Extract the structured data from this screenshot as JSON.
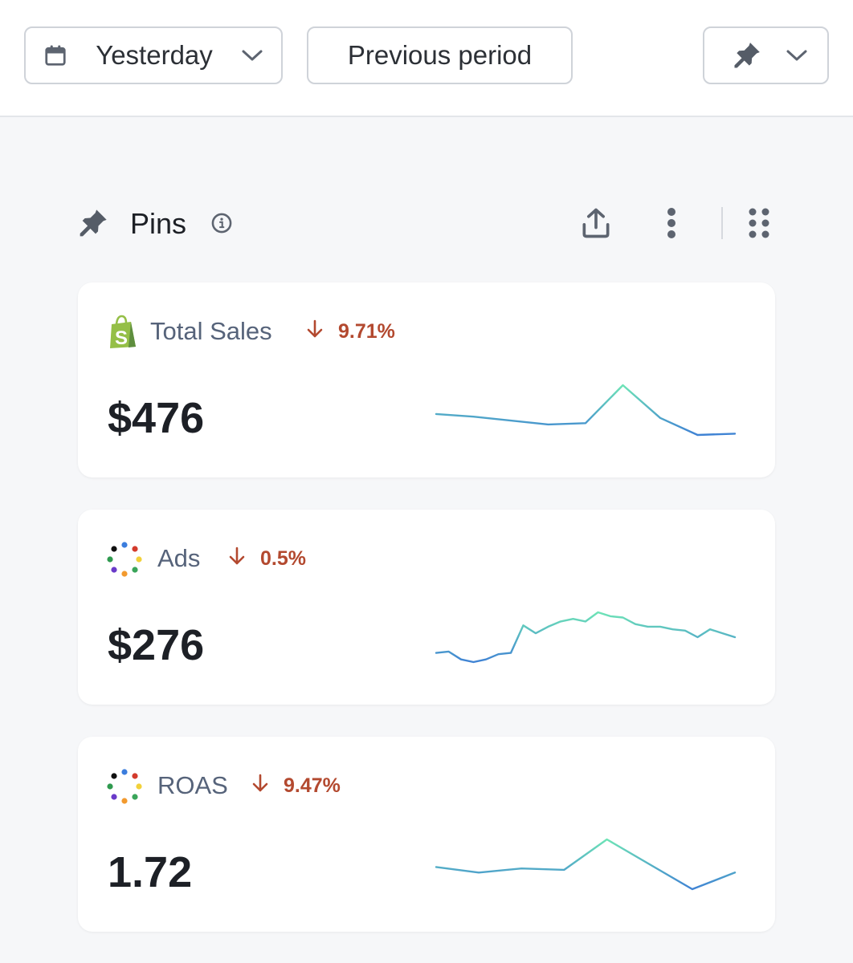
{
  "toolbar": {
    "date_label": "Yesterday",
    "compare_label": "Previous period"
  },
  "pins": {
    "title": "Pins"
  },
  "cards": [
    {
      "metric": "Total Sales",
      "delta": "9.71%",
      "value": "$476",
      "source": "shopify-logo",
      "trend": [
        22,
        20,
        17,
        14,
        15,
        44,
        19,
        6,
        7
      ]
    },
    {
      "metric": "Ads",
      "delta": "0.5%",
      "value": "$276",
      "source": "ads-logo",
      "trend": [
        22,
        23,
        17,
        15,
        17,
        21,
        22,
        43,
        37,
        42,
        46,
        48,
        46,
        53,
        50,
        49,
        44,
        42,
        42,
        40,
        39,
        34,
        40,
        37,
        34
      ]
    },
    {
      "metric": "ROAS",
      "delta": "9.47%",
      "value": "1.72",
      "source": "ads-logo",
      "trend": [
        28,
        24,
        27,
        26,
        48,
        30,
        12,
        24
      ]
    }
  ],
  "colors": {
    "accent_red": "#b3492f",
    "spark_blue": "#3f82d4",
    "spark_green": "#6ee4b6",
    "shopify_green": "#95bf47"
  }
}
